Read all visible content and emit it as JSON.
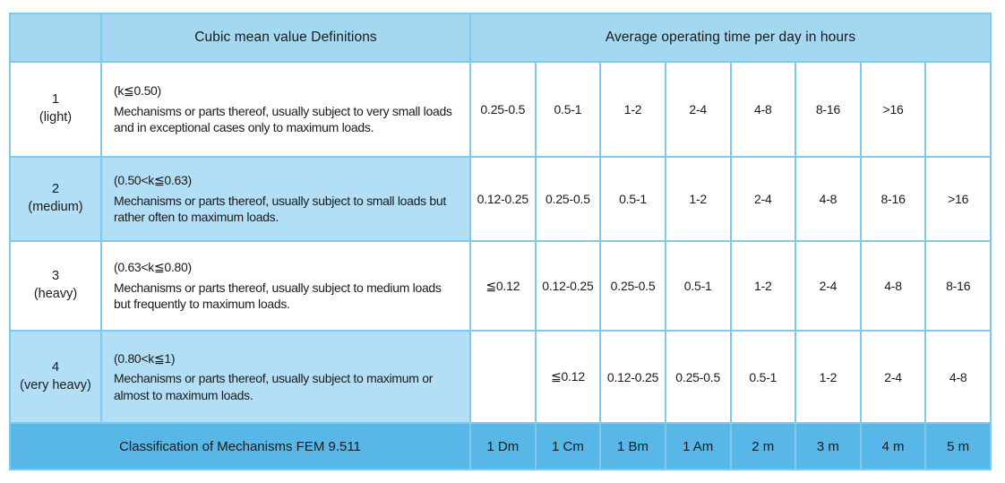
{
  "table": {
    "header": {
      "corner": "",
      "definitions": "Cubic mean value Definitions",
      "hours": "Average operating time per day in hours"
    },
    "rows": [
      {
        "class_no": "1",
        "class_name": "(light)",
        "k_range": "(k≦0.50)",
        "description": "Mechanisms or parts thereof, usually subject to very small loads and in exceptional cases only to maximum loads.",
        "hours": [
          "0.25-0.5",
          "0.5-1",
          "1-2",
          "2-4",
          "4-8",
          "8-16",
          ">16",
          ""
        ]
      },
      {
        "class_no": "2",
        "class_name": "(medium)",
        "k_range": "(0.50<k≦0.63)",
        "description": "Mechanisms or parts thereof, usually subject to small loads but rather often to maximum loads.",
        "hours": [
          "0.12-0.25",
          "0.25-0.5",
          "0.5-1",
          "1-2",
          "2-4",
          "4-8",
          "8-16",
          ">16"
        ]
      },
      {
        "class_no": "3",
        "class_name": "(heavy)",
        "k_range": "(0.63<k≦0.80)",
        "description": "Mechanisms or parts thereof, usually subject to medium loads but frequently to maximum loads.",
        "hours": [
          "≦0.12",
          "0.12-0.25",
          "0.25-0.5",
          "0.5-1",
          "1-2",
          "2-4",
          "4-8",
          "8-16"
        ]
      },
      {
        "class_no": "4",
        "class_name": "(very heavy)",
        "k_range": "(0.80<k≦1)",
        "description": "Mechanisms or parts thereof, usually subject to maximum or almost to maximum loads.",
        "hours": [
          "",
          "≦0.12",
          "0.12-0.25",
          "0.25-0.5",
          "0.5-1",
          "1-2",
          "2-4",
          "4-8"
        ]
      }
    ],
    "footer": {
      "label": "Classification of Mechanisms FEM 9.511",
      "classes": [
        "1 Dm",
        "1 Cm",
        "1 Bm",
        "1 Am",
        "2 m",
        "3 m",
        "4 m",
        "5 m"
      ]
    },
    "colors": {
      "header_bg": "#a4d8f1",
      "row_highlight_bg": "#b2dff5",
      "footer_bg": "#58b7e6",
      "border": "#7ec9ec",
      "cell_bg": "#ffffff",
      "text": "#1a1a1a"
    }
  }
}
